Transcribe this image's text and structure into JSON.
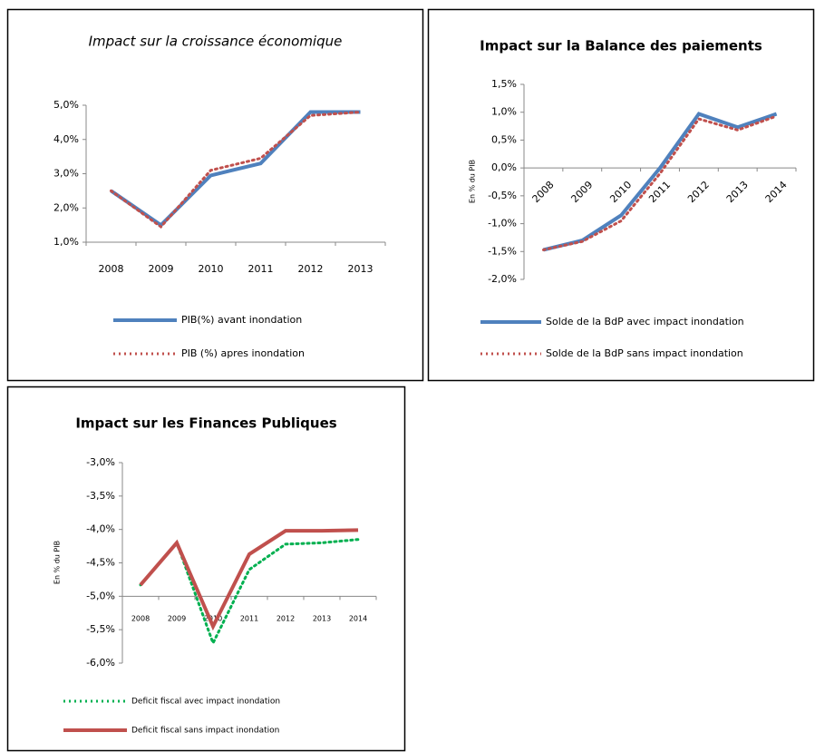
{
  "chart_data": [
    {
      "type": "line",
      "title": "Impact sur la croissance économique",
      "categories": [
        "2008",
        "2009",
        "2010",
        "2011",
        "2012",
        "2013"
      ],
      "series": [
        {
          "name": "PIB(%) avant inondation",
          "color": "#4f81bd",
          "style": "solid",
          "values": [
            2.5,
            1.5,
            2.95,
            3.3,
            4.8,
            4.8
          ]
        },
        {
          "name": "PIB (%) apres inondation",
          "color": "#c0504d",
          "style": "dotted",
          "values": [
            2.5,
            1.45,
            3.1,
            3.45,
            4.7,
            4.8
          ]
        }
      ],
      "ylim": [
        1,
        5
      ],
      "yticks": [
        {
          "value": 1,
          "label": "1,0%"
        },
        {
          "value": 2,
          "label": "2,0%"
        },
        {
          "value": 3,
          "label": "3,0%"
        },
        {
          "value": 4,
          "label": "4,0%"
        },
        {
          "value": 5,
          "label": "5,0%"
        }
      ],
      "x_axis_at": 1,
      "grid": false,
      "legend": "bottom"
    },
    {
      "type": "line",
      "title": "Impact sur la Balance des paiements",
      "y_label": "En % du PIB",
      "categories": [
        "2008",
        "2009",
        "2010",
        "2011",
        "2012",
        "2013",
        "2014"
      ],
      "series": [
        {
          "name": "Solde de la BdP avec impact inondation",
          "color": "#4f81bd",
          "style": "solid",
          "values": [
            -1.47,
            -1.3,
            -0.85,
            0.0,
            0.97,
            0.73,
            0.97
          ]
        },
        {
          "name": "Solde de la BdP sans impact inondation",
          "color": "#c0504d",
          "style": "dotted",
          "values": [
            -1.47,
            -1.32,
            -0.95,
            -0.1,
            0.88,
            0.68,
            0.93
          ]
        }
      ],
      "ylim": [
        -2,
        1.5
      ],
      "yticks": [
        {
          "value": -2,
          "label": "-2,0%"
        },
        {
          "value": -1.5,
          "label": "-1,5%"
        },
        {
          "value": -1,
          "label": "-1,0%"
        },
        {
          "value": -0.5,
          "label": "-0,5%"
        },
        {
          "value": 0,
          "label": "0,0%"
        },
        {
          "value": 0.5,
          "label": "0,5%"
        },
        {
          "value": 1,
          "label": "1,0%"
        },
        {
          "value": 1.5,
          "label": "1,5%"
        }
      ],
      "x_axis_at": 0,
      "grid": false,
      "legend": "bottom"
    },
    {
      "type": "line",
      "title": "Impact sur les Finances Publiques",
      "y_label": "En % du PIB",
      "categories": [
        "2008",
        "2009",
        "2010",
        "2011",
        "2012",
        "2013",
        "2014"
      ],
      "series": [
        {
          "name": "Deficit fiscal avec impact  inondation",
          "color": "#00b050",
          "style": "dotted",
          "values": [
            -4.83,
            -4.2,
            -5.7,
            -4.6,
            -4.22,
            -4.2,
            -4.15
          ]
        },
        {
          "name": "Deficit fiscal sans impact  inondation",
          "color": "#c0504d",
          "style": "solid",
          "values": [
            -4.83,
            -4.2,
            -5.45,
            -4.37,
            -4.02,
            -4.02,
            -4.01
          ]
        }
      ],
      "ylim": [
        -6,
        -3
      ],
      "yticks": [
        {
          "value": -6,
          "label": "-6,0%"
        },
        {
          "value": -5.5,
          "label": "-5,5%"
        },
        {
          "value": -5,
          "label": "-5,0%"
        },
        {
          "value": -4.5,
          "label": "-4,5%"
        },
        {
          "value": -4,
          "label": "-4,0%"
        },
        {
          "value": -3.5,
          "label": "-3,5%"
        },
        {
          "value": -3,
          "label": "-3,0%"
        }
      ],
      "x_axis_at": -5,
      "grid": false,
      "legend": "bottom"
    }
  ]
}
